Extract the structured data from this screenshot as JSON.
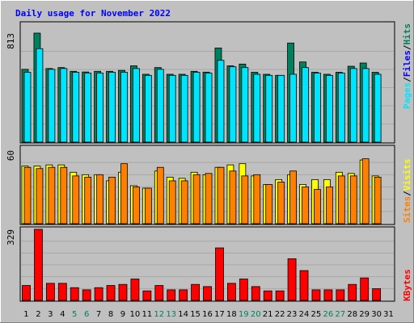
{
  "chart_data": [
    {
      "type": "bar",
      "title": "Daily usage for November 2022",
      "categories": [
        "1",
        "2",
        "3",
        "4",
        "5",
        "6",
        "7",
        "8",
        "9",
        "10",
        "11",
        "12",
        "13",
        "14",
        "15",
        "16",
        "17",
        "18",
        "19",
        "20",
        "21",
        "22",
        "23",
        "24",
        "25",
        "26",
        "27",
        "28",
        "29",
        "30",
        "31"
      ],
      "weekend_days": [
        "5",
        "6",
        "12",
        "13",
        "19",
        "20",
        "26",
        "27"
      ],
      "y_tick": 813,
      "ylim": [
        0,
        813
      ],
      "series": [
        {
          "name": "Hits",
          "color": "#00805c",
          "values": [
            543,
            813,
            549,
            556,
            528,
            523,
            528,
            528,
            535,
            569,
            506,
            556,
            506,
            506,
            528,
            522,
            702,
            569,
            582,
            521,
            506,
            498,
            739,
            598,
            521,
            506,
            521,
            566,
            590,
            521,
            0
          ]
        },
        {
          "name": "Files",
          "color": "#0000ff",
          "values": [
            0,
            0,
            0,
            0,
            0,
            0,
            0,
            0,
            0,
            0,
            0,
            0,
            0,
            0,
            0,
            0,
            0,
            0,
            0,
            0,
            0,
            0,
            0,
            0,
            0,
            0,
            0,
            0,
            0,
            0,
            0
          ]
        },
        {
          "name": "Pages",
          "color": "#00e5ff",
          "values": [
            521,
            697,
            543,
            549,
            521,
            515,
            515,
            521,
            521,
            549,
            498,
            543,
            498,
            498,
            521,
            515,
            610,
            562,
            556,
            506,
            498,
            498,
            506,
            556,
            515,
            498,
            515,
            549,
            549,
            506,
            0
          ]
        }
      ]
    },
    {
      "type": "bar",
      "categories": [
        "1",
        "2",
        "3",
        "4",
        "5",
        "6",
        "7",
        "8",
        "9",
        "10",
        "11",
        "12",
        "13",
        "14",
        "15",
        "16",
        "17",
        "18",
        "19",
        "20",
        "21",
        "22",
        "23",
        "24",
        "25",
        "26",
        "27",
        "28",
        "29",
        "30",
        "31"
      ],
      "y_tick": 60,
      "ylim": [
        0,
        60
      ],
      "series": [
        {
          "name": "Visits",
          "color": "#ffff00",
          "values": [
            47,
            47,
            48,
            48,
            42,
            40,
            40,
            35,
            42,
            31,
            29,
            43,
            38,
            37,
            42,
            40,
            46,
            48,
            49,
            39,
            32,
            36,
            40,
            32,
            36,
            36,
            42,
            41,
            52,
            39,
            0
          ]
        },
        {
          "name": "Sites",
          "color": "#ff8000",
          "values": [
            46,
            45,
            46,
            46,
            39,
            38,
            40,
            38,
            49,
            30,
            29,
            46,
            35,
            35,
            40,
            41,
            46,
            43,
            39,
            40,
            32,
            34,
            43,
            30,
            28,
            30,
            39,
            39,
            53,
            38,
            0
          ]
        }
      ]
    },
    {
      "type": "bar",
      "categories": [
        "1",
        "2",
        "3",
        "4",
        "5",
        "6",
        "7",
        "8",
        "9",
        "10",
        "11",
        "12",
        "13",
        "14",
        "15",
        "16",
        "17",
        "18",
        "19",
        "20",
        "21",
        "22",
        "23",
        "24",
        "25",
        "26",
        "27",
        "28",
        "29",
        "30",
        "31"
      ],
      "y_tick": 329,
      "ylim": [
        0,
        329
      ],
      "series": [
        {
          "name": "KBytes",
          "color": "#ff0000",
          "values": [
            69,
            329,
            79,
            79,
            59,
            49,
            59,
            69,
            74,
            99,
            44,
            69,
            49,
            49,
            74,
            64,
            243,
            79,
            99,
            64,
            44,
            44,
            193,
            138,
            49,
            49,
            49,
            74,
            104,
            54,
            0
          ]
        }
      ]
    }
  ]
}
